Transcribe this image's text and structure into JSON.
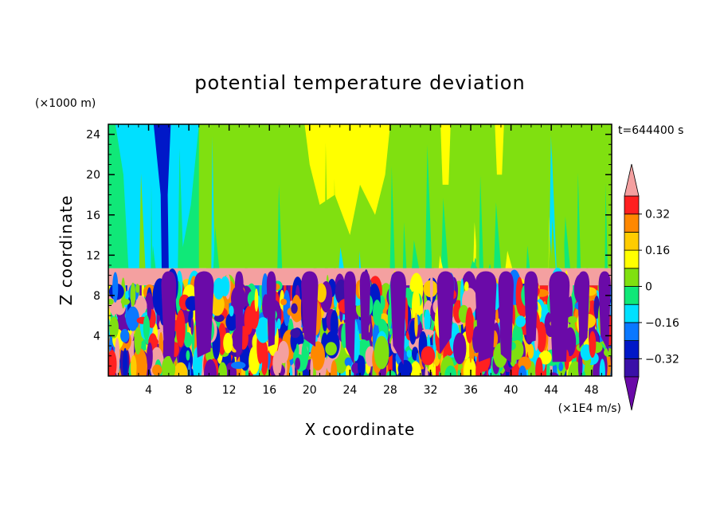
{
  "chart_data": {
    "type": "heatmap",
    "title": "potential temperature deviation",
    "xlabel": "X coordinate",
    "ylabel": "Z coordinate",
    "x_unit": "(×1E4 m/s)",
    "y_unit": "(×1000 m)",
    "time_label": "t=644400 s",
    "xlim": [
      0,
      50
    ],
    "ylim": [
      0,
      25
    ],
    "x_ticks": [
      "4",
      "8",
      "12",
      "16",
      "20",
      "24",
      "28",
      "32",
      "36",
      "40",
      "44",
      "48"
    ],
    "x_tick_values": [
      4,
      8,
      12,
      16,
      20,
      24,
      28,
      32,
      36,
      40,
      44,
      48
    ],
    "y_ticks": [
      "4",
      "8",
      "12",
      "16",
      "20",
      "24"
    ],
    "y_tick_values": [
      4,
      8,
      12,
      16,
      20,
      24
    ],
    "colorbar": {
      "labels": [
        "0.32",
        "0.16",
        "0",
        "−0.16",
        "−0.32"
      ],
      "label_values": [
        0.32,
        0.16,
        0,
        -0.16,
        -0.32
      ],
      "levels": [
        -0.4,
        -0.32,
        -0.24,
        -0.16,
        -0.08,
        0,
        0.08,
        0.16,
        0.24,
        0.32,
        0.4
      ],
      "colors": [
        "#6a0aa8",
        "#3a10a8",
        "#0018c8",
        "#0a78ff",
        "#00e0ff",
        "#10e878",
        "#80e010",
        "#ffff00",
        "#ffcc00",
        "#ff8800",
        "#ff2020",
        "#f4a0a0"
      ],
      "extend": "both"
    },
    "regions": {
      "upper_layer_z": [
        10.7,
        25
      ],
      "upper_layer_values": "mostly 0 to 0.08, with -0.08 bands near x=0-8 and a -0.32 streak near x=5-6, and 0.16 patches near x=20-28",
      "stable_band_z": [
        9,
        10.7
      ],
      "stable_band_value": "> 0.4",
      "convective_layer_z": [
        0,
        9
      ],
      "convective_layer_values": "turbulent mix spanning -0.4 to 0.4"
    }
  }
}
